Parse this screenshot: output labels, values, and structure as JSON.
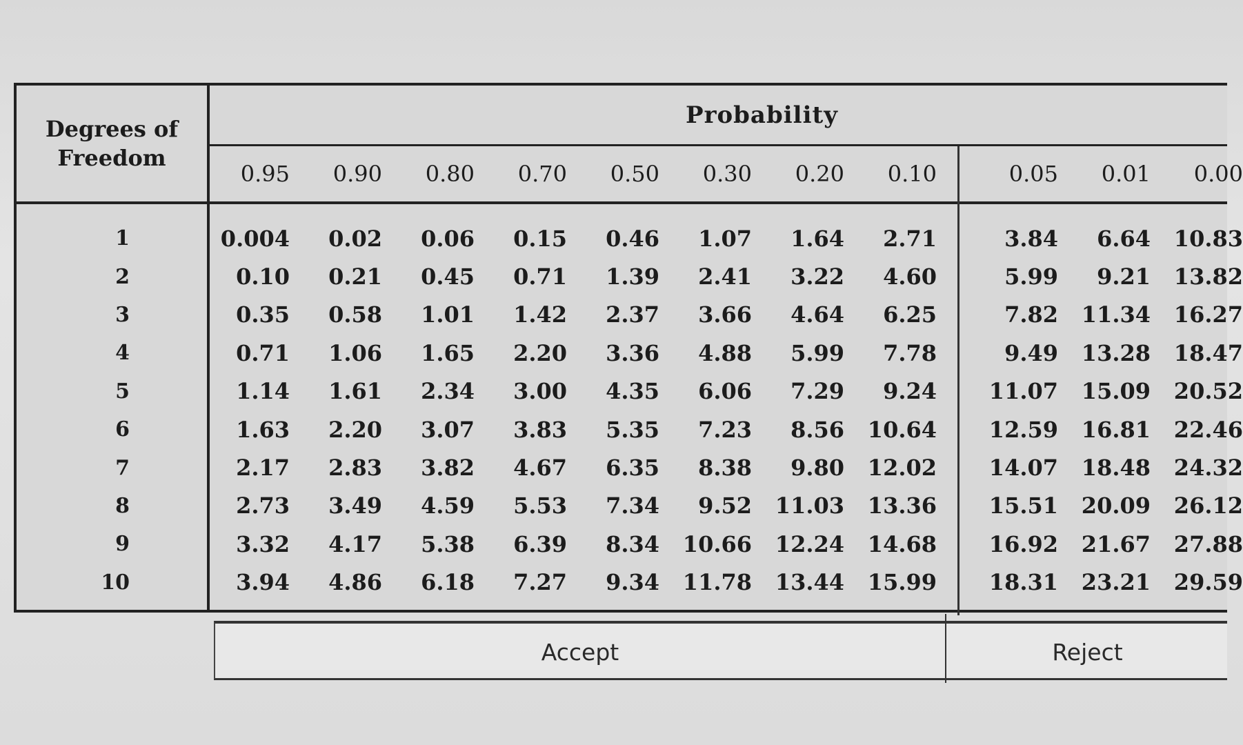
{
  "table": {
    "df_header_line1": "Degrees of",
    "df_header_line2": "Freedom",
    "probability_header": "Probability",
    "probabilities": [
      "0.95",
      "0.90",
      "0.80",
      "0.70",
      "0.50",
      "0.30",
      "0.20",
      "0.10",
      "0.05",
      "0.01",
      "0.00"
    ],
    "rows": [
      {
        "df": "1",
        "values": [
          "0.004",
          "0.02",
          "0.06",
          "0.15",
          "0.46",
          "1.07",
          "1.64",
          "2.71",
          "3.84",
          "6.64",
          "10.83"
        ]
      },
      {
        "df": "2",
        "values": [
          "0.10",
          "0.21",
          "0.45",
          "0.71",
          "1.39",
          "2.41",
          "3.22",
          "4.60",
          "5.99",
          "9.21",
          "13.82"
        ]
      },
      {
        "df": "3",
        "values": [
          "0.35",
          "0.58",
          "1.01",
          "1.42",
          "2.37",
          "3.66",
          "4.64",
          "6.25",
          "7.82",
          "11.34",
          "16.27"
        ]
      },
      {
        "df": "4",
        "values": [
          "0.71",
          "1.06",
          "1.65",
          "2.20",
          "3.36",
          "4.88",
          "5.99",
          "7.78",
          "9.49",
          "13.28",
          "18.47"
        ]
      },
      {
        "df": "5",
        "values": [
          "1.14",
          "1.61",
          "2.34",
          "3.00",
          "4.35",
          "6.06",
          "7.29",
          "9.24",
          "11.07",
          "15.09",
          "20.52"
        ]
      },
      {
        "df": "6",
        "values": [
          "1.63",
          "2.20",
          "3.07",
          "3.83",
          "5.35",
          "7.23",
          "8.56",
          "10.64",
          "12.59",
          "16.81",
          "22.46"
        ]
      },
      {
        "df": "7",
        "values": [
          "2.17",
          "2.83",
          "3.82",
          "4.67",
          "6.35",
          "8.38",
          "9.80",
          "12.02",
          "14.07",
          "18.48",
          "24.32"
        ]
      },
      {
        "df": "8",
        "values": [
          "2.73",
          "3.49",
          "4.59",
          "5.53",
          "7.34",
          "9.52",
          "11.03",
          "13.36",
          "15.51",
          "20.09",
          "26.12"
        ]
      },
      {
        "df": "9",
        "values": [
          "3.32",
          "4.17",
          "5.38",
          "6.39",
          "8.34",
          "10.66",
          "12.24",
          "14.68",
          "16.92",
          "21.67",
          "27.88"
        ]
      },
      {
        "df": "10",
        "values": [
          "3.94",
          "4.86",
          "6.18",
          "7.27",
          "9.34",
          "11.78",
          "13.44",
          "15.99",
          "18.31",
          "23.21",
          "29.59"
        ]
      }
    ]
  },
  "footer": {
    "accept_label": "Accept",
    "reject_label": "Reject"
  }
}
